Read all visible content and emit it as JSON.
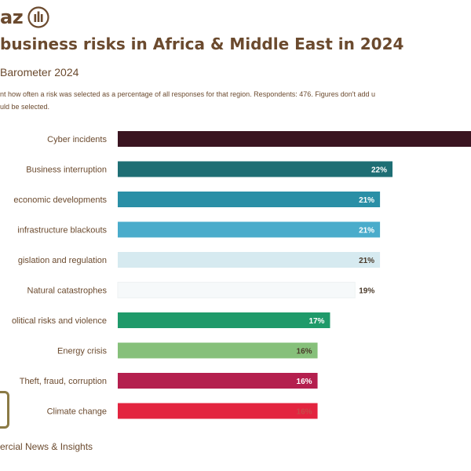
{
  "header": {
    "logo_text": "az",
    "logo_icon": "allianz-eagle-icon",
    "title": "business risks in Africa & Middle East in 2024",
    "subtitle": "Barometer 2024",
    "note_line1": "nt how often a risk was selected as a percentage of all responses for that region. Respondents: 476. Figures don't add u",
    "note_line2": "uld be selected."
  },
  "footer": {
    "text": "ercial News & Insights"
  },
  "colors": {
    "text": "#6b4a2e"
  },
  "chart_data": {
    "type": "bar",
    "orientation": "horizontal",
    "categories": [
      "Cyber incidents",
      "Business interruption",
      "economic developments",
      "infrastructure blackouts",
      "gislation and regulation",
      "Natural catastrophes",
      "olitical risks and violence",
      "Energy crisis",
      "Theft, fraud, corruption",
      "Climate change"
    ],
    "values": [
      null,
      22,
      21,
      21,
      21,
      19,
      17,
      16,
      16,
      16
    ],
    "value_labels": [
      "",
      "22%",
      "21%",
      "21%",
      "21%",
      "19%",
      "17%",
      "16%",
      "16%",
      "16%"
    ],
    "bar_colors": [
      "#3a1420",
      "#1e6e74",
      "#2a8fa6",
      "#4aaccb",
      "#d6eaf0",
      "#f6f9fa",
      "#1f9a6a",
      "#86c07a",
      "#b41f4e",
      "#e3243f"
    ],
    "label_colors": [
      "#ffffff",
      "#ffffff",
      "#ffffff",
      "#ffffff",
      "#4a3a2a",
      "#4a3a2a",
      "#ffffff",
      "#4a3a2a",
      "#ffffff",
      "#c84a4a"
    ],
    "label_inside": [
      true,
      true,
      true,
      true,
      true,
      false,
      true,
      true,
      true,
      true
    ],
    "xlim": [
      0,
      22
    ],
    "grid": false,
    "legend": "none"
  }
}
